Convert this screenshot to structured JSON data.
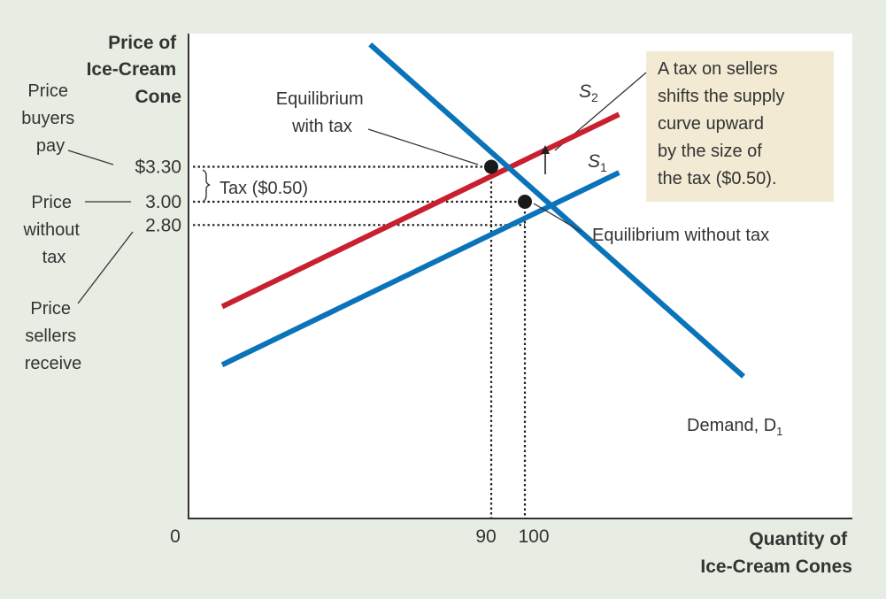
{
  "chart_data": {
    "type": "line",
    "y_axis_title": [
      "Price of",
      "Ice-Cream",
      "Cone"
    ],
    "x_axis_title": [
      "Quantity of",
      "Ice-Cream Cones"
    ],
    "origin_label": "0",
    "y_ticks": [
      {
        "value": 3.3,
        "label": "$3.30"
      },
      {
        "value": 3.0,
        "label": "3.00"
      },
      {
        "value": 2.8,
        "label": "2.80"
      }
    ],
    "x_ticks": [
      {
        "value": 90,
        "label": "90"
      },
      {
        "value": 100,
        "label": "100"
      }
    ],
    "series": [
      {
        "name": "S2",
        "label_main": "S",
        "label_sub": "2",
        "color": "#c8202f",
        "points": [
          [
            10,
            2.1
          ],
          [
            128,
            3.75
          ]
        ]
      },
      {
        "name": "S1",
        "label_main": "S",
        "label_sub": "1",
        "color": "#0a73b9",
        "points": [
          [
            10,
            1.6
          ],
          [
            128,
            3.25
          ]
        ]
      },
      {
        "name": "Demand, D1",
        "label_main": "Demand, D",
        "label_sub": "1",
        "color": "#0a73b9",
        "points": [
          [
            54,
            4.35
          ],
          [
            165,
            1.5
          ]
        ]
      }
    ],
    "equilibria": [
      {
        "x": 90,
        "y": 3.3,
        "label": [
          "Equilibrium",
          "with tax"
        ]
      },
      {
        "x": 100,
        "y": 3.0,
        "label": [
          "Equilibrium without tax"
        ]
      }
    ],
    "side_labels": {
      "buyers": [
        "Price",
        "buyers",
        "pay"
      ],
      "without_tax": [
        "Price",
        "without",
        "tax"
      ],
      "sellers": [
        "Price",
        "sellers",
        "receive"
      ]
    },
    "tax_bracket_label": "Tax ($0.50)",
    "callout": [
      "A tax on sellers",
      "shifts the supply",
      "curve upward",
      "by the size of",
      "the tax ($0.50)."
    ],
    "colors": {
      "background": "#e8ede3",
      "plot_area": "#ffffff",
      "callout_bg": "#f3ead3",
      "supply_after_tax": "#c8202f",
      "supply_and_demand": "#0a73b9",
      "text": "#333333"
    }
  }
}
